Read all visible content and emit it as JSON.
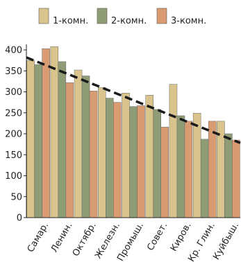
{
  "chart_data": {
    "type": "bar",
    "categories": [
      "Самар.",
      "Ленин.",
      "Октябр.",
      "Железн.",
      "Промыш.",
      "Совет.",
      "Киров.",
      "Кр. Глин.",
      "Куйбыш."
    ],
    "series": [
      {
        "name": "1-комн.",
        "color": "#d8c48c",
        "values": [
          375,
          408,
          352,
          310,
          297,
          292,
          318,
          249,
          230
        ]
      },
      {
        "name": "2-комн.",
        "color": "#8f9d77",
        "values": [
          365,
          372,
          338,
          285,
          265,
          258,
          243,
          187,
          200
        ]
      },
      {
        "name": "3-комн.",
        "color": "#d99c72",
        "values": [
          403,
          322,
          302,
          275,
          267,
          216,
          230,
          230,
          185
        ]
      }
    ],
    "trend_line": {
      "start": 382,
      "end": 178,
      "style": "dashed"
    },
    "ylim": [
      0,
      400
    ],
    "yticks": [
      0,
      50,
      100,
      150,
      200,
      250,
      300,
      350,
      400
    ],
    "title": "",
    "xlabel": "",
    "ylabel": "",
    "grid": false,
    "legend_position": "top"
  }
}
